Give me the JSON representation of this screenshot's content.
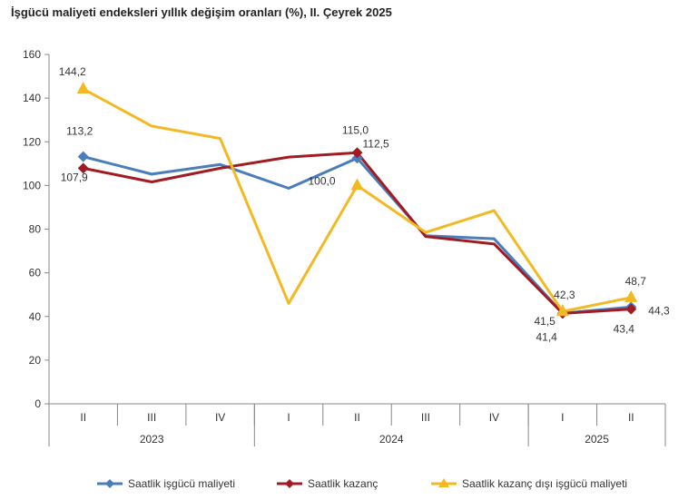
{
  "chart_data": {
    "type": "line",
    "title": "İşgücü maliyeti endeksleri yıllık değişim oranları (%), II. Çeyrek 2025",
    "categories": [
      "II",
      "III",
      "IV",
      "I",
      "II",
      "III",
      "IV",
      "I",
      "II"
    ],
    "year_groups": [
      {
        "label": "2023",
        "span": 3
      },
      {
        "label": "2024",
        "span": 4
      },
      {
        "label": "2025",
        "span": 2
      }
    ],
    "ylim": [
      0,
      160
    ],
    "yticks": [
      0,
      20,
      40,
      60,
      80,
      100,
      120,
      140,
      160
    ],
    "grid": false,
    "legend": "bottom",
    "series": [
      {
        "name": "Saatlik işgücü maliyeti",
        "color": "#4a7ebb",
        "marker": "diamond",
        "values": [
          113.2,
          105.2,
          109.6,
          98.7,
          112.5,
          77.0,
          75.6,
          41.5,
          44.3
        ],
        "labels": [
          "113,2",
          null,
          null,
          null,
          "112,5",
          null,
          null,
          "41,5",
          "44,3"
        ]
      },
      {
        "name": "Saatlik kazanç",
        "color": "#a01c22",
        "marker": "diamond",
        "values": [
          107.9,
          101.6,
          107.9,
          113.0,
          115.0,
          76.6,
          73.2,
          41.4,
          43.4
        ],
        "labels": [
          "107,9",
          null,
          null,
          null,
          "115,0",
          null,
          null,
          "41,4",
          "43,4"
        ]
      },
      {
        "name": "Saatlik kazanç dışı işgücü maliyeti",
        "color": "#f2b922",
        "marker": "triangle",
        "values": [
          144.2,
          127.2,
          121.5,
          46.0,
          100.0,
          78.5,
          88.5,
          42.3,
          48.7
        ],
        "labels": [
          "144,2",
          null,
          null,
          null,
          "100,0",
          null,
          null,
          "42,3",
          "48,7"
        ]
      }
    ]
  }
}
